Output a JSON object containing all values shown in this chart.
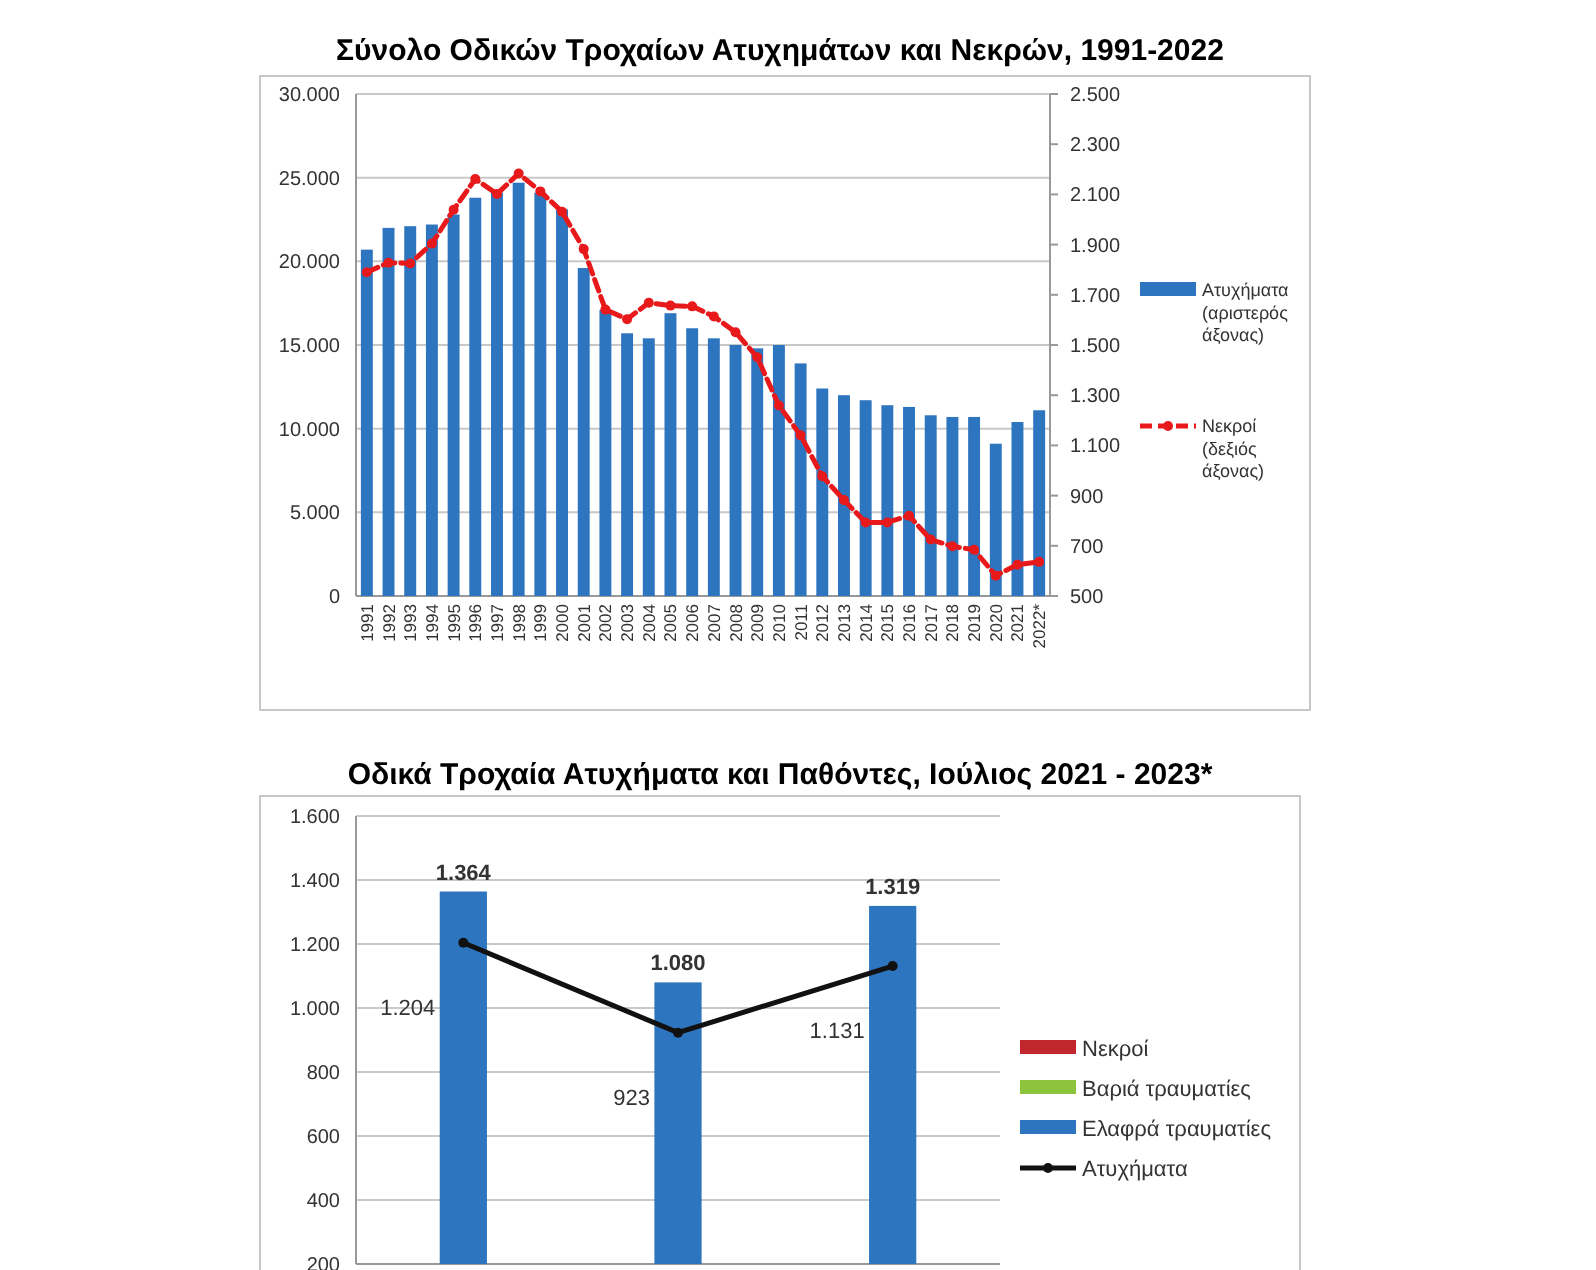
{
  "chart_data": [
    {
      "type": "bar",
      "title": "Σύνολο Οδικών Τροχαίων Ατυχημάτων και Νεκρών, 1991-2022",
      "categories": [
        "1991",
        "1992",
        "1993",
        "1994",
        "1995",
        "1996",
        "1997",
        "1998",
        "1999",
        "2000",
        "2001",
        "2002",
        "2003",
        "2004",
        "2005",
        "2006",
        "2007",
        "2008",
        "2009",
        "2010",
        "2011",
        "2012",
        "2013",
        "2014",
        "2015",
        "2016",
        "2017",
        "2018",
        "2019",
        "2020",
        "2021",
        "2022*"
      ],
      "series": [
        {
          "name": "Ατυχήματα (αριστερός άξονας)",
          "color": "#2e75c0",
          "values": [
            20700,
            22000,
            22100,
            22200,
            22800,
            23800,
            24100,
            24700,
            24100,
            23100,
            19600,
            17100,
            15700,
            15400,
            16900,
            16000,
            15400,
            15000,
            14800,
            15000,
            13900,
            12400,
            12000,
            11700,
            11400,
            11300,
            10800,
            10700,
            10700,
            9100,
            10400,
            11100
          ]
        },
        {
          "name": "Νεκροί (δεξιός άξονας)",
          "type": "line",
          "axis": "y2",
          "color": "#e8191b",
          "line_style": "dashed",
          "marker": "circle",
          "values": [
            1790,
            1828,
            1825,
            1904,
            2039,
            2161,
            2102,
            2183,
            2112,
            2031,
            1882,
            1641,
            1603,
            1668,
            1657,
            1654,
            1614,
            1551,
            1451,
            1259,
            1140,
            977,
            882,
            793,
            793,
            820,
            725,
            698,
            684,
            581,
            625,
            636
          ]
        }
      ],
      "ylim": [
        0,
        30000
      ],
      "yticks": [
        {
          "value": 0,
          "label": "0"
        },
        {
          "value": 5000,
          "label": "5.000"
        },
        {
          "value": 10000,
          "label": "10.000"
        },
        {
          "value": 15000,
          "label": "15.000"
        },
        {
          "value": 20000,
          "label": "20.000"
        },
        {
          "value": 25000,
          "label": "25.000"
        },
        {
          "value": 30000,
          "label": "30.000"
        }
      ],
      "y2lim": [
        500,
        2500
      ],
      "y2ticks": [
        500,
        700,
        900,
        {
          "value": 1100,
          "label": "1.100"
        },
        {
          "value": 1300,
          "label": "1.300"
        },
        {
          "value": 1500,
          "label": "1.500"
        },
        {
          "value": 1700,
          "label": "1.700"
        },
        {
          "value": 1900,
          "label": "1.900"
        },
        {
          "value": 2100,
          "label": "2.100"
        },
        {
          "value": 2300,
          "label": "2.300"
        },
        {
          "value": 2500,
          "label": "2.500"
        }
      ],
      "grid": "y",
      "legend": "right"
    },
    {
      "type": "bar",
      "title": "Οδικά Τροχαία Ατυχήματα και Παθόντες, Ιούλιος 2021 - 2023*",
      "categories": [
        null,
        null,
        null
      ],
      "series": [
        {
          "name": "Νεκροί",
          "type": "bar",
          "color": "#c0282d",
          "values": [
            null,
            null,
            null
          ]
        },
        {
          "name": "Βαριά τραυματίες",
          "type": "bar",
          "color": "#8cc43c",
          "values": [
            null,
            null,
            null
          ]
        },
        {
          "name": "Ελαφρά τραυματίες",
          "color": "#2e75c0",
          "values": [
            1364,
            1080,
            1319
          ],
          "value_labels": [
            "1.364",
            "1.080",
            "1.319"
          ]
        },
        {
          "name": "Ατυχήματα",
          "type": "line",
          "color": "#111111",
          "marker": "circle",
          "values": [
            1204,
            923,
            1131
          ],
          "value_labels": [
            "1.204",
            "923",
            "1.131"
          ]
        }
      ],
      "ylim": [
        200,
        1600
      ],
      "yticks": [
        200,
        400,
        600,
        800,
        {
          "value": 1000,
          "label": "1.000"
        },
        {
          "value": 1200,
          "label": "1.200"
        },
        {
          "value": 1400,
          "label": "1.400"
        },
        {
          "value": 1600,
          "label": "1.600"
        }
      ],
      "grid": "y",
      "legend": "right"
    }
  ]
}
